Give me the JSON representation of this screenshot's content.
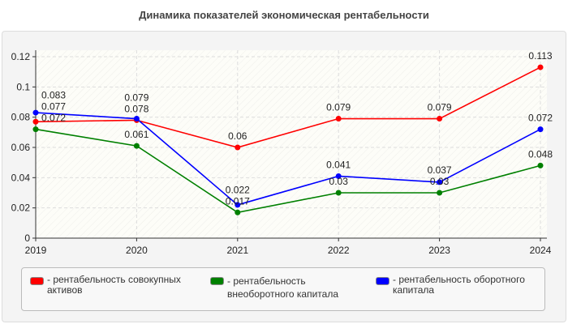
{
  "title": "Динамика показателей экономическая рентабельности",
  "chart_data": {
    "type": "line",
    "title": "Динамика показателей экономическая рентабельности",
    "categories": [
      "2019",
      "2020",
      "2021",
      "2022",
      "2023",
      "2024"
    ],
    "ylim": [
      0,
      0.12
    ],
    "yticks": [
      "0",
      "0.02",
      "0.04",
      "0.06",
      "0.08",
      "0.1",
      "0.12"
    ],
    "grid": true,
    "legend_position": "bottom",
    "series": [
      {
        "name": "- рентабельность совокупных активов",
        "color": "#ff0000",
        "values": [
          0.077,
          0.078,
          0.06,
          0.079,
          0.079,
          0.113
        ]
      },
      {
        "name": "- рентабельность внеоборотного капитала",
        "color": "#008000",
        "values": [
          0.072,
          0.061,
          0.017,
          0.03,
          0.03,
          0.048
        ]
      },
      {
        "name": "- рентабельность оборотного капитала",
        "color": "#0000ff",
        "values": [
          0.083,
          0.079,
          0.022,
          0.041,
          0.037,
          0.072
        ]
      }
    ]
  }
}
